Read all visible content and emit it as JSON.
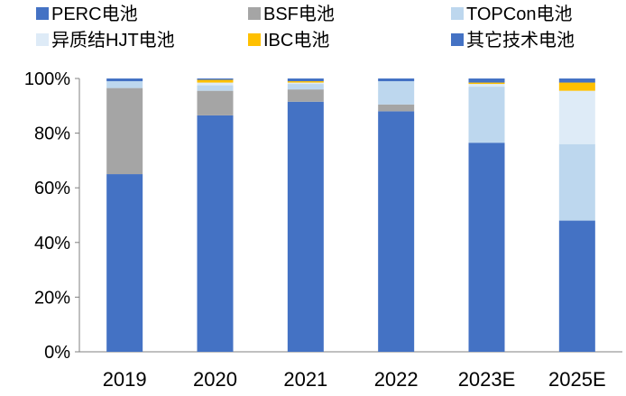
{
  "chart_data": {
    "type": "bar",
    "stacked": true,
    "percent": true,
    "categories": [
      "2019",
      "2020",
      "2021",
      "2022",
      "2023E",
      "2025E"
    ],
    "ylim": [
      0,
      100
    ],
    "yticks": [
      0,
      20,
      40,
      60,
      80,
      100
    ],
    "ytick_labels": [
      "0%",
      "20%",
      "40%",
      "60%",
      "80%",
      "100%"
    ],
    "grid": false,
    "legend": "top",
    "series": [
      {
        "name": "PERC电池",
        "color": "#4472C4",
        "values": [
          65,
          86.5,
          91.5,
          88,
          76.5,
          48
        ]
      },
      {
        "name": "BSF电池",
        "color": "#A5A5A5",
        "values": [
          31.5,
          9,
          4.5,
          2.5,
          0,
          0
        ]
      },
      {
        "name": "TOPCon电池",
        "color": "#BDD7EE",
        "values": [
          2.5,
          2,
          2,
          8.5,
          20.5,
          28
        ]
      },
      {
        "name": "异质结HJT电池",
        "color": "#DEEBF7",
        "values": [
          0,
          1,
          0.5,
          0,
          1,
          19.5
        ]
      },
      {
        "name": "IBC电池",
        "color": "#FFC000",
        "values": [
          0,
          1,
          0.5,
          0,
          0.5,
          3
        ]
      },
      {
        "name": "其它技术电池",
        "color": "#4472C4",
        "values": [
          1,
          0.5,
          1,
          1,
          1.5,
          1.5
        ]
      }
    ]
  }
}
